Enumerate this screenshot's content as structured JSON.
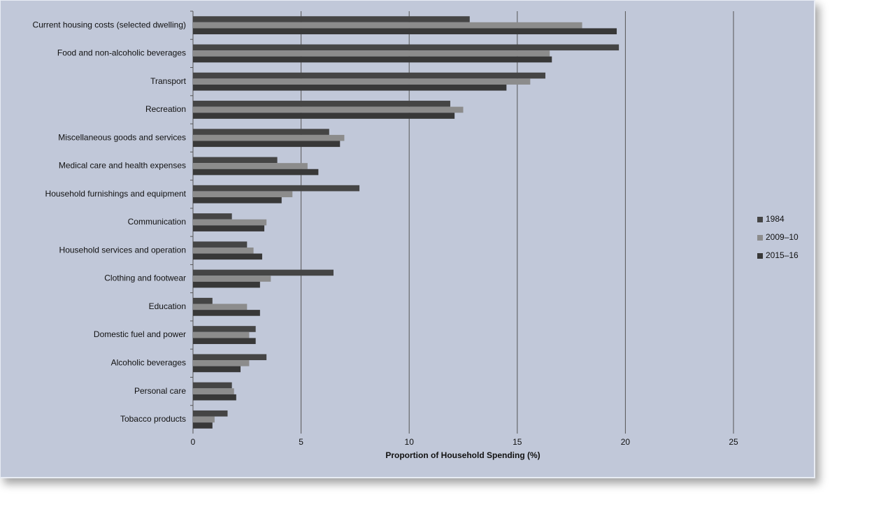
{
  "chart_data": {
    "type": "hbar",
    "x_label": "Proportion of Household Spending (%)",
    "categories": [
      "Current housing costs (selected dwelling)",
      "Food and non-alcoholic beverages",
      "Transport",
      "Recreation",
      "Miscellaneous goods and services",
      "Medical care and health expenses",
      "Household furnishings and equipment",
      "Communication",
      "Household services and operation",
      "Clothing and footwear",
      "Education",
      "Domestic fuel and power",
      "Alcoholic beverages",
      "Personal care",
      "Tobacco products"
    ],
    "series": [
      {
        "name": "1984",
        "color": "#454545",
        "values": [
          12.8,
          19.7,
          16.3,
          11.9,
          6.3,
          3.9,
          7.7,
          1.8,
          2.5,
          6.5,
          0.9,
          2.9,
          3.4,
          1.8,
          1.6
        ]
      },
      {
        "name": "2009–10",
        "color": "#8c8c8c",
        "values": [
          18.0,
          16.5,
          15.6,
          12.5,
          7.0,
          5.3,
          4.6,
          3.4,
          2.8,
          3.6,
          2.5,
          2.6,
          2.6,
          1.9,
          1.0
        ]
      },
      {
        "name": "2015–16",
        "color": "#383838",
        "values": [
          19.6,
          16.6,
          14.5,
          12.1,
          6.8,
          5.8,
          4.1,
          3.3,
          3.2,
          3.1,
          3.1,
          2.9,
          2.2,
          2.0,
          0.9
        ]
      }
    ],
    "xlim": [
      0,
      25
    ],
    "xticks": [
      0,
      5,
      10,
      15,
      20,
      25
    ],
    "grid": true,
    "legend": "right"
  }
}
